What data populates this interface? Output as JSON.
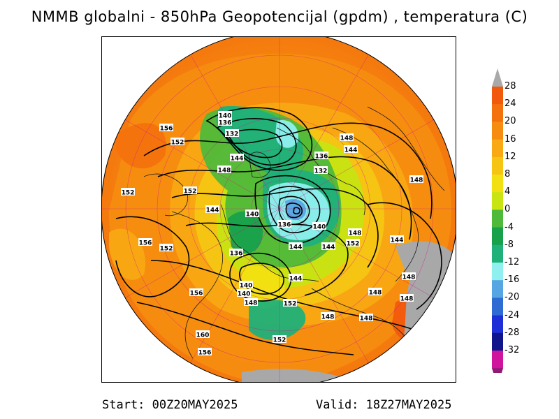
{
  "header": {
    "title": "NMMB globalni - 850hPa Geopotencijal (gpdm) , temperatura (C)"
  },
  "footer": {
    "start": "Start: 00Z20MAY2025",
    "valid": "Valid: 18Z27MAY2025"
  },
  "colorbar": {
    "labels": [
      "28",
      "24",
      "20",
      "16",
      "12",
      "8",
      "4",
      "0",
      "-4",
      "-8",
      "-12",
      "-16",
      "-20",
      "-24",
      "-28",
      "-32"
    ],
    "colors": [
      "#f15a0d",
      "#f4720d",
      "#f68d10",
      "#f8a913",
      "#f6c514",
      "#f2e012",
      "#c8e412",
      "#4fb93a",
      "#17a14b",
      "#20b07a",
      "#8ff0ef",
      "#57a6e4",
      "#2e6cd4",
      "#1d2fd6",
      "#10158c",
      "#d0159c",
      "#8e1a74"
    ],
    "top_arrow_color": "#a9a9a9",
    "bottom_arrow_color": "#8e1a74"
  },
  "map": {
    "land_outline_color": "#1a1a1a",
    "grid_color": "#d2158c",
    "contour_color": "#000000",
    "missing_color": "#a8a8a8",
    "contour_labels": [
      {
        "text": "140"
      },
      {
        "text": "136"
      },
      {
        "text": "132"
      },
      {
        "text": "144"
      },
      {
        "text": "148"
      },
      {
        "text": "156"
      },
      {
        "text": "152"
      },
      {
        "text": "148"
      },
      {
        "text": "144"
      },
      {
        "text": "136"
      },
      {
        "text": "132"
      },
      {
        "text": "148"
      },
      {
        "text": "152"
      },
      {
        "text": "152"
      },
      {
        "text": "144"
      },
      {
        "text": "140"
      },
      {
        "text": "136"
      },
      {
        "text": "140"
      },
      {
        "text": "148"
      },
      {
        "text": "156"
      },
      {
        "text": "152"
      },
      {
        "text": "152"
      },
      {
        "text": "144"
      },
      {
        "text": "144"
      },
      {
        "text": "136"
      },
      {
        "text": "144"
      },
      {
        "text": "140"
      },
      {
        "text": "140"
      },
      {
        "text": "156"
      },
      {
        "text": "148"
      },
      {
        "text": "148"
      },
      {
        "text": "148"
      },
      {
        "text": "152"
      },
      {
        "text": "148"
      },
      {
        "text": "148"
      },
      {
        "text": "160"
      },
      {
        "text": "156"
      },
      {
        "text": "152"
      },
      {
        "text": "148"
      },
      {
        "text": "144"
      }
    ]
  }
}
